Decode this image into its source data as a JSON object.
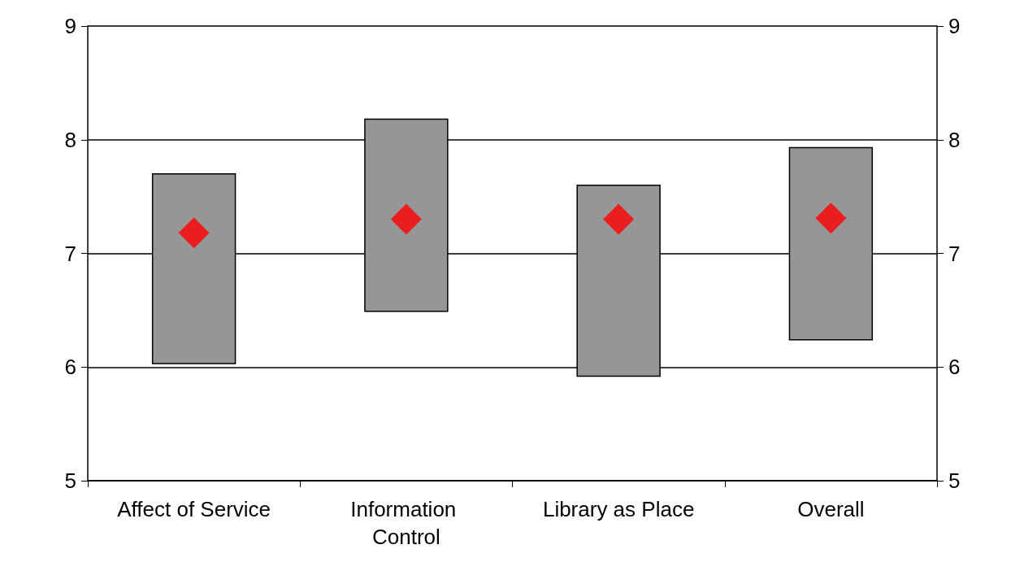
{
  "chart_data": {
    "type": "bar",
    "categories": [
      "Affect of Service",
      "Information Control",
      "Library as Place",
      "Overall"
    ],
    "series": [
      {
        "color": "#969696",
        "base": [
          6.03,
          6.49,
          5.92,
          6.24
        ],
        "values": [
          1.67,
          1.69,
          1.68,
          1.69
        ]
      },
      {
        "type": "scatter",
        "color": "#ff0000",
        "marker": "diamond",
        "values": [
          7.18,
          7.3,
          7.3,
          7.31
        ]
      }
    ],
    "ylim": [
      5,
      9
    ],
    "yticks": [
      5,
      6,
      7,
      8,
      9
    ],
    "y2lim": [
      5,
      9
    ],
    "y2ticks": [
      5,
      6,
      7,
      8,
      9
    ],
    "grid": "y"
  }
}
